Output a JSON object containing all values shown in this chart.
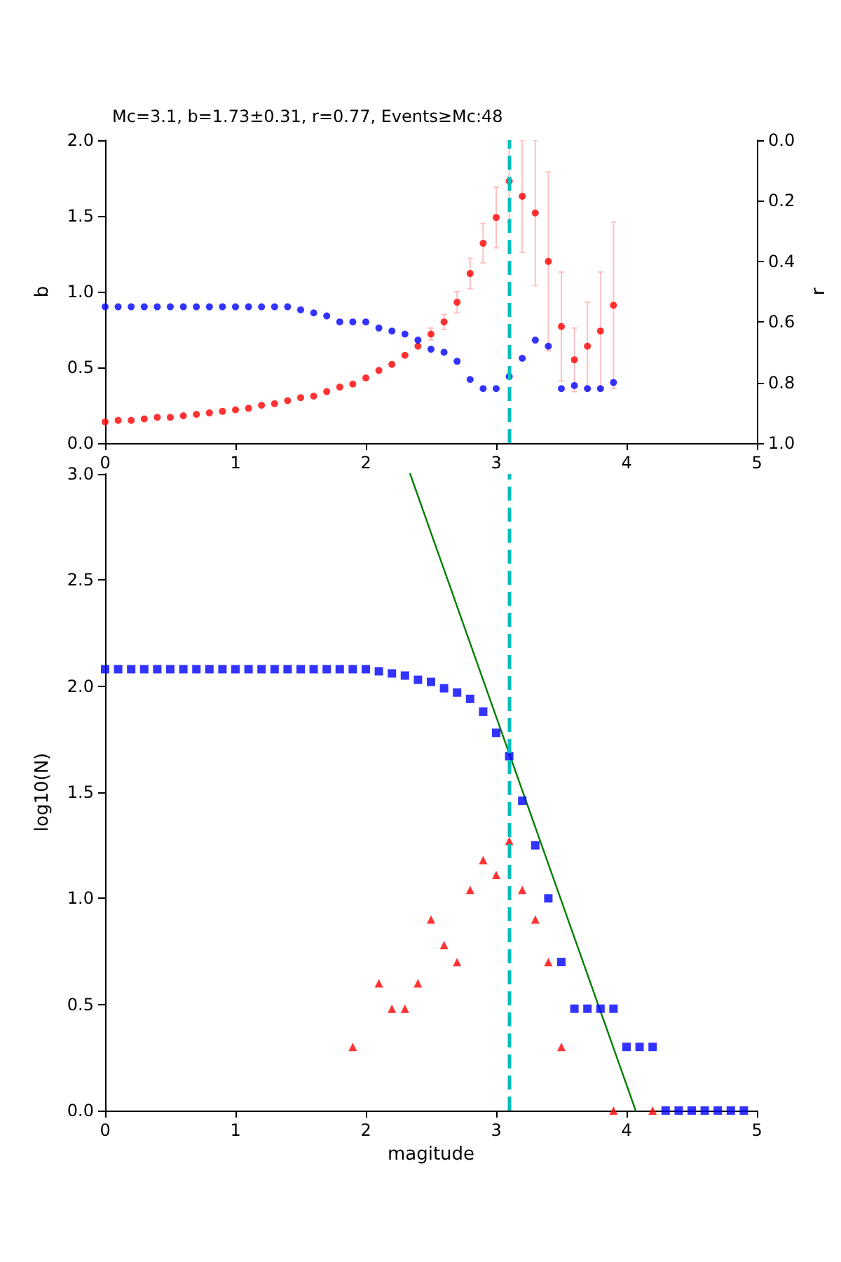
{
  "chart_data": [
    {
      "type": "scatter",
      "title": "Mc=3.1, b=1.73±0.31, r=0.77, Events≥Mc:48",
      "ylabel": "b",
      "y2label": "r",
      "x": [
        0,
        0.1,
        0.2,
        0.3,
        0.4,
        0.5,
        0.6,
        0.7,
        0.8,
        0.9,
        1.0,
        1.1,
        1.2,
        1.3,
        1.4,
        1.5,
        1.6,
        1.7,
        1.8,
        1.9,
        2.0,
        2.1,
        2.2,
        2.3,
        2.4,
        2.5,
        2.6,
        2.7,
        2.8,
        2.9,
        3.0,
        3.1,
        3.2,
        3.3,
        3.4,
        3.5,
        3.6,
        3.7,
        3.8,
        3.9
      ],
      "series": [
        {
          "color": "#ff0000",
          "marker": "circle",
          "values": [
            0.14,
            0.15,
            0.15,
            0.16,
            0.17,
            0.17,
            0.18,
            0.19,
            0.2,
            0.21,
            0.22,
            0.23,
            0.25,
            0.26,
            0.28,
            0.3,
            0.31,
            0.34,
            0.37,
            0.39,
            0.43,
            0.48,
            0.52,
            0.58,
            0.64,
            0.72,
            0.8,
            0.93,
            1.12,
            1.32,
            1.49,
            1.73,
            1.63,
            1.52,
            1.2,
            0.77,
            0.55,
            0.64,
            0.74,
            0.91
          ],
          "errors": [
            null,
            null,
            null,
            null,
            null,
            null,
            null,
            null,
            null,
            null,
            null,
            null,
            null,
            null,
            null,
            null,
            null,
            null,
            null,
            null,
            null,
            null,
            null,
            null,
            null,
            0.04,
            0.05,
            0.07,
            0.1,
            0.13,
            0.2,
            0.27,
            0.37,
            0.48,
            0.59,
            0.36,
            0.21,
            0.29,
            0.39,
            0.55
          ]
        },
        {
          "color": "#0000ff",
          "marker": "circle",
          "axis": "y2",
          "values": [
            0.55,
            0.55,
            0.55,
            0.55,
            0.55,
            0.55,
            0.55,
            0.55,
            0.55,
            0.55,
            0.55,
            0.55,
            0.55,
            0.55,
            0.55,
            0.56,
            0.57,
            0.58,
            0.6,
            0.6,
            0.6,
            0.62,
            0.63,
            0.64,
            0.66,
            0.69,
            0.7,
            0.73,
            0.79,
            0.82,
            0.82,
            0.78,
            0.72,
            0.66,
            0.68,
            0.82,
            0.81,
            0.82,
            0.82,
            0.8
          ]
        }
      ],
      "xlim": [
        0,
        5
      ],
      "xticks": [
        0,
        1,
        2,
        3,
        4,
        5
      ],
      "ylim": [
        0,
        2
      ],
      "yticks": [
        {
          "value": 0,
          "label": "0.0"
        },
        {
          "value": 0.5,
          "label": "0.5"
        },
        {
          "value": 1,
          "label": "1.0"
        },
        {
          "value": 1.5,
          "label": "1.5"
        },
        {
          "value": 2,
          "label": "2.0"
        }
      ],
      "y2lim": [
        1,
        0
      ],
      "y2ticks": [
        {
          "value": 0,
          "label": "0.0"
        },
        {
          "value": 0.2,
          "label": "0.2"
        },
        {
          "value": 0.4,
          "label": "0.4"
        },
        {
          "value": 0.6,
          "label": "0.6"
        },
        {
          "value": 0.8,
          "label": "0.8"
        },
        {
          "value": 1,
          "label": "1.0"
        }
      ],
      "ref_lines": [
        {
          "axis": "x",
          "value": 3.1,
          "color": "#00bfbf",
          "line_style": "dashed"
        }
      ],
      "grid": false
    },
    {
      "type": "scatter",
      "xlabel": "magitude",
      "ylabel": "log10(N)",
      "x": [
        0,
        0.1,
        0.2,
        0.3,
        0.4,
        0.5,
        0.6,
        0.7,
        0.8,
        0.9,
        1.0,
        1.1,
        1.2,
        1.3,
        1.4,
        1.5,
        1.6,
        1.7,
        1.8,
        1.9,
        2.0,
        2.1,
        2.2,
        2.3,
        2.4,
        2.5,
        2.6,
        2.7,
        2.8,
        2.9,
        3.0,
        3.1,
        3.2,
        3.3,
        3.4,
        3.5,
        3.6,
        3.7,
        3.8,
        3.9,
        4.0,
        4.1,
        4.2,
        4.3,
        4.4,
        4.5,
        4.6,
        4.7,
        4.8,
        4.9
      ],
      "series": [
        {
          "color": "#0000ff",
          "marker": "square",
          "values": [
            2.08,
            2.08,
            2.08,
            2.08,
            2.08,
            2.08,
            2.08,
            2.08,
            2.08,
            2.08,
            2.08,
            2.08,
            2.08,
            2.08,
            2.08,
            2.08,
            2.08,
            2.08,
            2.08,
            2.08,
            2.08,
            2.07,
            2.06,
            2.05,
            2.03,
            2.02,
            1.99,
            1.97,
            1.94,
            1.88,
            1.78,
            1.67,
            1.46,
            1.25,
            1.0,
            0.7,
            0.48,
            0.48,
            0.48,
            0.48,
            0.3,
            0.3,
            0.3,
            0,
            0,
            0,
            0,
            0,
            0,
            0
          ]
        },
        {
          "color": "#ff0000",
          "marker": "triangle",
          "x": [
            1.9,
            2.1,
            2.2,
            2.3,
            2.4,
            2.5,
            2.6,
            2.7,
            2.8,
            2.9,
            3.0,
            3.1,
            3.2,
            3.3,
            3.4,
            3.5,
            3.9,
            4.2
          ],
          "values": [
            0.3,
            0.6,
            0.48,
            0.48,
            0.6,
            0.9,
            0.78,
            0.7,
            1.04,
            1.18,
            1.11,
            1.27,
            1.04,
            0.9,
            0.7,
            0.3,
            0,
            0
          ]
        },
        {
          "type": "line",
          "color": "#008000",
          "marker": "none",
          "x": [
            2.34,
            4.07
          ],
          "values": [
            3.0,
            0
          ]
        }
      ],
      "xlim": [
        0,
        5
      ],
      "xticks": [
        0,
        1,
        2,
        3,
        4,
        5
      ],
      "ylim": [
        0,
        3
      ],
      "yticks": [
        {
          "value": 0,
          "label": "0.0"
        },
        {
          "value": 0.5,
          "label": "0.5"
        },
        {
          "value": 1,
          "label": "1.0"
        },
        {
          "value": 1.5,
          "label": "1.5"
        },
        {
          "value": 2,
          "label": "2.0"
        },
        {
          "value": 2.5,
          "label": "2.5"
        },
        {
          "value": 3,
          "label": "3.0"
        }
      ],
      "ref_lines": [
        {
          "axis": "x",
          "value": 3.1,
          "color": "#00bfbf",
          "line_style": "dashed"
        }
      ],
      "grid": false
    }
  ]
}
